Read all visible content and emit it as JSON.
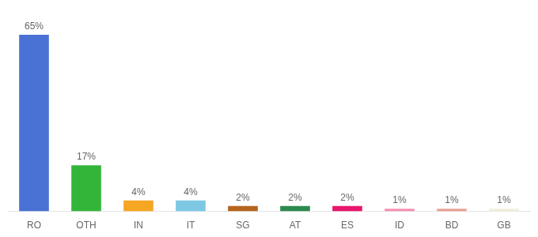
{
  "chart_data": {
    "type": "bar",
    "categories": [
      "RO",
      "OTH",
      "IN",
      "IT",
      "SG",
      "AT",
      "ES",
      "ID",
      "BD",
      "GB"
    ],
    "values": [
      65,
      17,
      4,
      4,
      2,
      2,
      2,
      1,
      1,
      1
    ],
    "value_labels": [
      "65%",
      "17%",
      "4%",
      "4%",
      "2%",
      "2%",
      "2%",
      "1%",
      "1%",
      "1%"
    ],
    "colors": [
      "#4a72d4",
      "#33b53a",
      "#f5a623",
      "#7ec8e3",
      "#b5651d",
      "#2d8a4e",
      "#e8166d",
      "#f48fb1",
      "#e8a090",
      "#f0eed8"
    ],
    "ylim": [
      0,
      72
    ],
    "data_labels": true,
    "tick_labels": "x",
    "grid": false
  }
}
